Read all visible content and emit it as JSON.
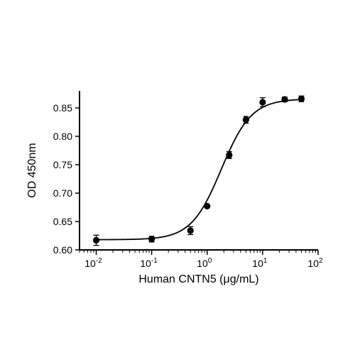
{
  "chart_data": {
    "type": "scatter",
    "xlabel": "Human CNTN5 (μg/mL)",
    "ylabel": "OD 450nm",
    "x_scale": "log",
    "xlim": [
      0.005,
      100
    ],
    "ylim": [
      0.6,
      0.88
    ],
    "grid": false,
    "x_ticks": [
      {
        "value": 0.01,
        "base": "10",
        "exp": "-2"
      },
      {
        "value": 0.1,
        "base": "10",
        "exp": "-1"
      },
      {
        "value": 1,
        "base": "10",
        "exp": "0"
      },
      {
        "value": 10,
        "base": "10",
        "exp": "1"
      },
      {
        "value": 100,
        "base": "10",
        "exp": "2"
      }
    ],
    "y_ticks": [
      {
        "value": 0.6,
        "label": "0.60"
      },
      {
        "value": 0.65,
        "label": "0.65"
      },
      {
        "value": 0.7,
        "label": "0.70"
      },
      {
        "value": 0.75,
        "label": "0.75"
      },
      {
        "value": 0.8,
        "label": "0.80"
      },
      {
        "value": 0.85,
        "label": "0.85"
      }
    ],
    "series": [
      {
        "x": [
          0.01,
          0.1,
          0.5,
          1,
          2.5,
          5,
          10,
          25,
          50
        ],
        "y": [
          0.617,
          0.619,
          0.634,
          0.677,
          0.767,
          0.829,
          0.86,
          0.865,
          0.866
        ],
        "error": [
          0.009,
          0.005,
          0.007,
          0.002,
          0.006,
          0.006,
          0.008,
          0.004,
          0.005
        ]
      }
    ],
    "fit": {
      "model": "4PL",
      "bottom": 0.618,
      "top": 0.866,
      "ec50": 1.8,
      "hill": 1.6
    },
    "colors": {
      "marker": "#000000",
      "line": "#000000",
      "axis": "#000000"
    }
  }
}
